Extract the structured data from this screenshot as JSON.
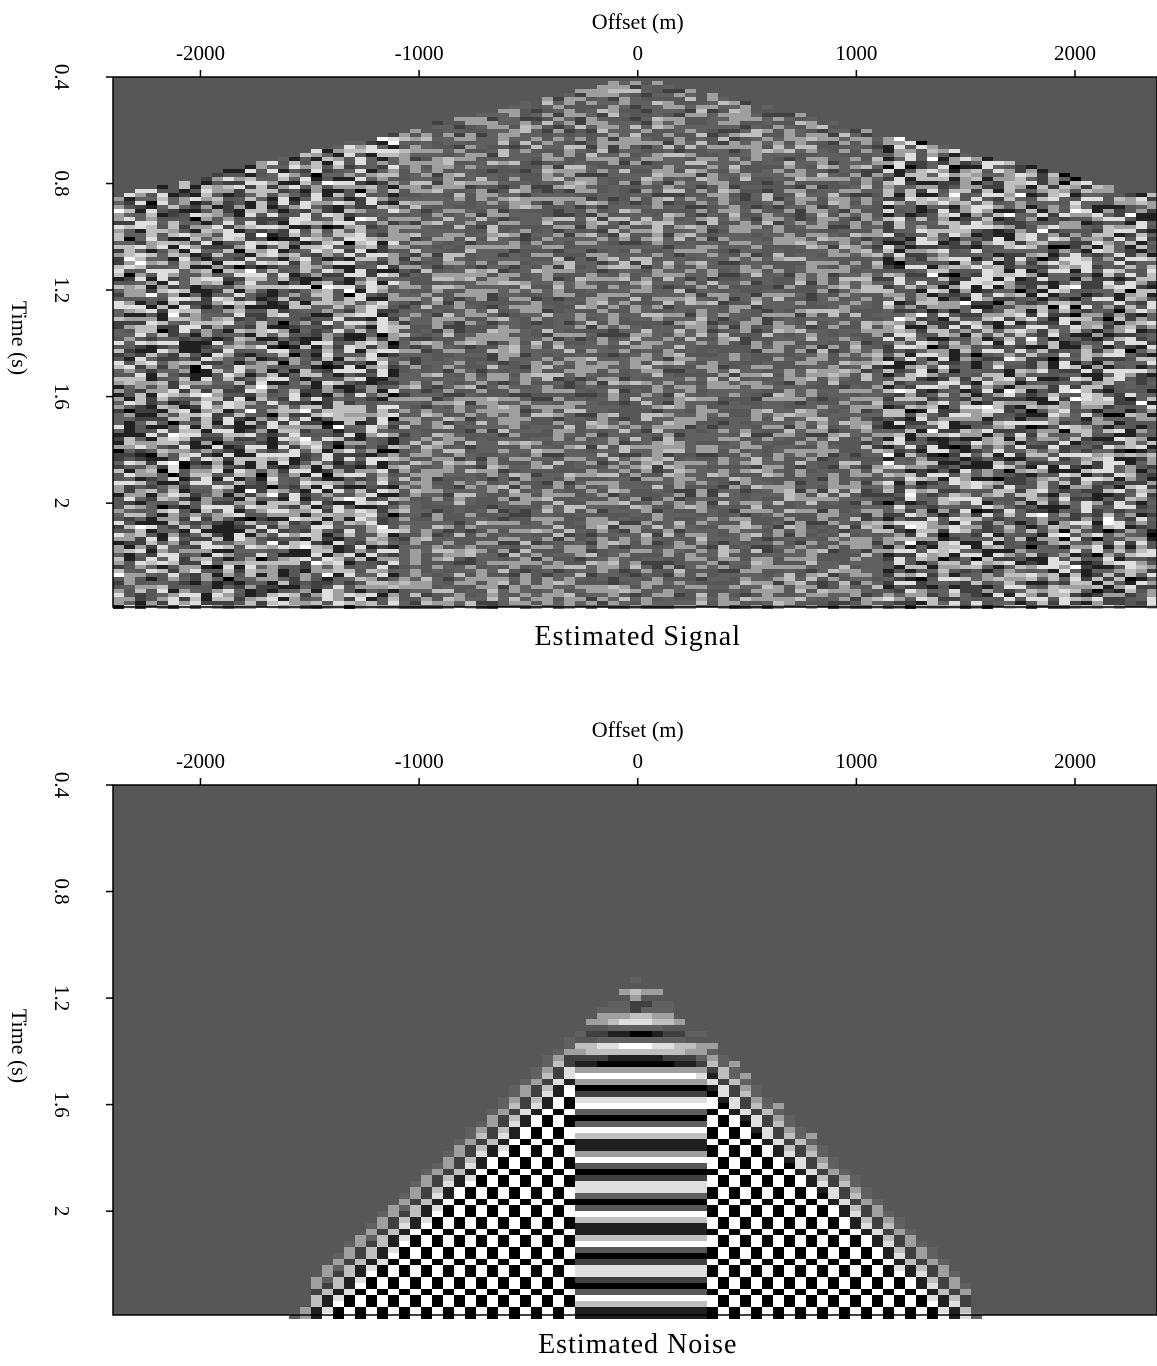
{
  "chart_data": [
    {
      "type": "image",
      "title": "Estimated Signal",
      "x_label": "Offset (m)",
      "y_label": "Time (s)",
      "xlim": [
        -2400,
        2375
      ],
      "xticks": [
        -2000,
        -1000,
        0,
        1000,
        2000
      ],
      "ylim": [
        0.4,
        2.39
      ],
      "yticks": [
        0.4,
        0.8,
        1.2,
        1.6,
        2
      ],
      "y_inverted": true,
      "colormap": "gray"
    },
    {
      "type": "image",
      "title": "Estimated Noise",
      "x_label": "Offset (m)",
      "y_label": "Time (s)",
      "xlim": [
        -2400,
        2375
      ],
      "xticks": [
        -2000,
        -1000,
        0,
        1000,
        2000
      ],
      "ylim": [
        0.4,
        2.39
      ],
      "yticks": [
        0.4,
        0.8,
        1.2,
        1.6,
        2
      ],
      "y_inverted": true,
      "colormap": "gray"
    }
  ]
}
